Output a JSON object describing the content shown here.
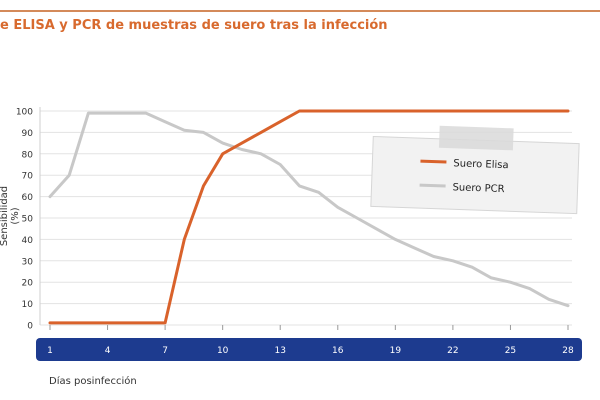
{
  "chart_data": {
    "type": "line",
    "title": "e ELISA y PCR de muestras de suero tras la infección",
    "xlabel": "Días posinfección",
    "ylabel": "Sensibilidad (%)",
    "x_ticks": [
      1,
      4,
      7,
      10,
      13,
      16,
      19,
      22,
      25,
      28
    ],
    "y_ticks": [
      0,
      10,
      20,
      30,
      40,
      50,
      60,
      70,
      80,
      90,
      100
    ],
    "xlim": [
      1,
      28
    ],
    "ylim": [
      0,
      100
    ],
    "grid": "horizontal",
    "legend_position": "top-right",
    "series": [
      {
        "name": "Suero Elisa",
        "color": "#d9622b",
        "x": [
          1,
          2,
          3,
          4,
          5,
          6,
          7,
          8,
          9,
          10,
          11,
          12,
          13,
          14,
          15,
          16,
          17,
          18,
          19,
          20,
          21,
          22,
          23,
          24,
          25,
          26,
          27,
          28
        ],
        "values": [
          1,
          1,
          1,
          1,
          1,
          1,
          1,
          40,
          65,
          80,
          85,
          90,
          95,
          100,
          100,
          100,
          100,
          100,
          100,
          100,
          100,
          100,
          100,
          100,
          100,
          100,
          100,
          100
        ]
      },
      {
        "name": "Suero PCR",
        "color": "#c8c8c8",
        "x": [
          1,
          2,
          3,
          4,
          5,
          6,
          7,
          8,
          9,
          10,
          11,
          12,
          13,
          14,
          15,
          16,
          17,
          18,
          19,
          20,
          21,
          22,
          23,
          24,
          25,
          26,
          27,
          28
        ],
        "values": [
          60,
          70,
          99,
          99,
          99,
          99,
          95,
          91,
          90,
          85,
          82,
          80,
          75,
          65,
          62,
          55,
          50,
          45,
          40,
          36,
          32,
          30,
          27,
          22,
          20,
          17,
          12,
          9
        ]
      }
    ]
  }
}
